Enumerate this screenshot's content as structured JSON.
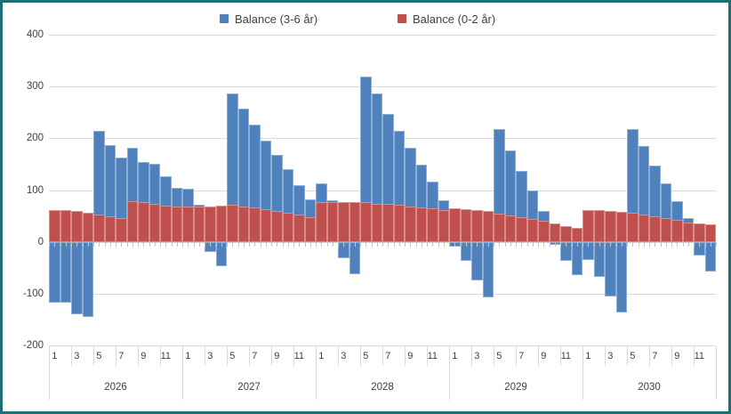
{
  "chart": {
    "border_color": "#1e6f73",
    "background": "#ffffff",
    "grid_color": "#d9d9d9",
    "tick_color": "#c3c3c3",
    "text_color": "#404040"
  },
  "chart_data": {
    "type": "bar",
    "title": "",
    "legend_position": "top",
    "grid": true,
    "bar_mode": "overlap",
    "ylim": [
      -200,
      400
    ],
    "y_ticks": [
      400,
      300,
      200,
      100,
      0,
      -100,
      -200
    ],
    "x": {
      "years": [
        "2026",
        "2027",
        "2028",
        "2029",
        "2030"
      ],
      "months_per_year": 12,
      "month_tick_labels": [
        "1",
        "3",
        "5",
        "7",
        "9",
        "11"
      ]
    },
    "series": [
      {
        "name": "Balance (3-6 år)",
        "color": "#4f81bd",
        "values": [
          -117,
          -118,
          -139,
          -145,
          215,
          187,
          162,
          181,
          155,
          151,
          126,
          105,
          102,
          71,
          -19,
          -47,
          287,
          258,
          227,
          195,
          168,
          141,
          110,
          82,
          113,
          80,
          -31,
          -63,
          320,
          286,
          247,
          214,
          181,
          149,
          116,
          80,
          -9,
          -37,
          -74,
          -107,
          217,
          177,
          137,
          100,
          60,
          -5,
          -36,
          -64,
          -35,
          -68,
          -105,
          -137,
          218,
          185,
          148,
          113,
          79,
          46,
          -26,
          -57
        ]
      },
      {
        "name": "Balance (0-2 år)",
        "color": "#c0504d",
        "values": [
          62,
          61,
          59,
          56,
          53,
          49,
          46,
          78,
          76,
          73,
          70,
          68,
          69,
          68,
          68,
          70,
          71,
          69,
          66,
          63,
          60,
          57,
          53,
          48,
          77,
          77,
          77,
          77,
          76,
          74,
          73,
          72,
          69,
          66,
          64,
          62,
          64,
          63,
          61,
          59,
          55,
          51,
          47,
          44,
          40,
          36,
          31,
          27,
          62,
          62,
          60,
          58,
          56,
          53,
          50,
          46,
          42,
          38,
          35,
          33
        ]
      }
    ]
  }
}
